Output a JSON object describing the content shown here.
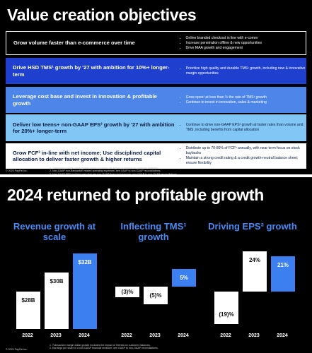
{
  "slide1": {
    "title": "Value creation objectives",
    "rows": [
      {
        "text": "Grow volume faster than e-commerce over time",
        "bullets": [
          "Online branded checkout in line with e-comm",
          "Increase penetration offline & new opportunities",
          "Drive MAA growth and engagement"
        ]
      },
      {
        "text": "Drive HSD TMS¹ growth by '27 with ambition for 10%+ longer-term",
        "bullets": [
          "Prioritize high quality and durable TMS¹ growth, including new & innovative margin opportunities"
        ]
      },
      {
        "text": "Leverage cost base and invest in innovation & profitable growth",
        "bullets": [
          "Grow opex² at less than ½ the rate of TMS¹ growth",
          "Continue to invest in innovation, sales & marketing"
        ]
      },
      {
        "text": "Deliver low teens+ non-GAAP EPS³ growth by '27 with ambition for 20%+ longer-term",
        "bullets": [
          "Continue to drive non-GAAP EPS³ growth at faster rates than volume and TMS, including benefits from capital allocation"
        ]
      },
      {
        "text": "Grow FCF³ in-line with net income; Use disciplined capital allocation to deliver faster growth & higher returns",
        "bullets": [
          "Distribute up to 70-80% of FCF³ annually, with near term focus on stock buybacks",
          "Maintain a strong credit rating & a credit growth-neutral balance sheet; ensure flexibility"
        ]
      }
    ],
    "footnotes": [
      "1. Transaction margin dollar growth shown excludes the impact of interest on customer balances.",
      "2. Non-GAAP non-transaction related operating expenses; see GAAP to non-GAAP reconciliations.",
      "3. Non-GAAP EPS and free cash flow are non-GAAP financial measures; see GAAP to non-GAAP reconciliations."
    ],
    "copyright": "© 2025 PayPal Inc."
  },
  "slide2": {
    "title": "2024 returned to profitable growth",
    "chart_data": [
      {
        "type": "bar",
        "title": "Revenue growth at scale",
        "categories": [
          "2022",
          "2023",
          "2024"
        ],
        "values": [
          28,
          30,
          32
        ],
        "value_labels": [
          "$28B",
          "$30B",
          "$32B"
        ],
        "colors": [
          "#ffffff",
          "#ffffff",
          "#3b7ff0"
        ],
        "ylim": [
          24,
          33
        ]
      },
      {
        "type": "bar",
        "title": "Inflecting TMS¹ growth",
        "categories": [
          "2022",
          "2023",
          "2024"
        ],
        "values": [
          -3,
          -5,
          5
        ],
        "value_labels": [
          "(3)%",
          "(5)%",
          "5%"
        ],
        "colors": [
          "#ffffff",
          "#ffffff",
          "#3b7ff0"
        ],
        "ylim": [
          -12,
          12
        ]
      },
      {
        "type": "bar",
        "title": "Driving EPS² growth",
        "categories": [
          "2022",
          "2023",
          "2024"
        ],
        "values": [
          -19,
          24,
          21
        ],
        "value_labels": [
          "(19)%",
          "24%",
          "21%"
        ],
        "colors": [
          "#ffffff",
          "#ffffff",
          "#3b7ff0"
        ],
        "ylim": [
          -22,
          28
        ]
      }
    ],
    "footnotes": [
      "1. Transaction margin dollar growth excludes the impact of interest on customer balances.",
      "2. Earnings per share is a non-GAAP financial measure; see GAAP to non-GAAP reconciliations."
    ],
    "copyright": "© 2025 PayPal Inc."
  }
}
